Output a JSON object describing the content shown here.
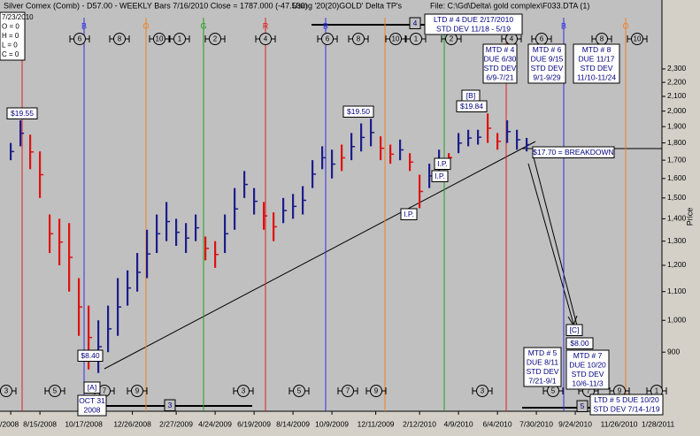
{
  "chart_data": {
    "type": "range_bar",
    "title": "Silver Comex (Comb) - D57.00 - WEEKLY Bars  7/16/2010 Close = 1787.000 (-47.500)",
    "subtitle": "Using '20(20)GOLD' Delta TP's",
    "file": "File: C:\\Gd\\Delta\\ gold complex\\F033.DTA (1)",
    "y_label": "Price",
    "info": [
      "7/23/2010",
      "O = 0",
      "H = 0",
      "L = 0",
      "C = 0"
    ],
    "log_scale": true,
    "ylim": [
      740,
      2890
    ],
    "yticks": [
      900,
      {
        "value": 1000,
        "label": "1,000"
      },
      {
        "value": 1100,
        "label": "1,100"
      },
      {
        "value": 1200,
        "label": "1,200"
      },
      {
        "value": 1300,
        "label": "1,300"
      },
      {
        "value": 1400,
        "label": "1,400"
      },
      {
        "value": 1500,
        "label": "1,500"
      },
      {
        "value": 1600,
        "label": "1,600"
      },
      {
        "value": 1700,
        "label": "1,700"
      },
      {
        "value": 1800,
        "label": "1,800"
      },
      {
        "value": 1900,
        "label": "1,900"
      },
      {
        "value": 2000,
        "label": "2,000"
      },
      {
        "value": 2100,
        "label": "2,100"
      },
      {
        "value": 2200,
        "label": "2,200"
      },
      {
        "value": 2300,
        "label": "2,300"
      }
    ],
    "xlim": [
      -2.2,
      133.8
    ],
    "xticks": [
      {
        "value": 0,
        "label": "/2008"
      },
      {
        "value": 6,
        "label": "8/15/2008"
      },
      {
        "value": 15,
        "label": "10/17/2008"
      },
      {
        "value": 25,
        "label": "12/26/2008"
      },
      {
        "value": 34,
        "label": "2/27/2009"
      },
      {
        "value": 42,
        "label": "4/24/2009"
      },
      {
        "value": 50,
        "label": "6/19/2009"
      },
      {
        "value": 58,
        "label": "8/14/2009"
      },
      {
        "value": 66,
        "label": "10/9/2009"
      },
      {
        "value": 75,
        "label": "12/11/2009"
      },
      {
        "value": 84,
        "label": "2/12/2010"
      },
      {
        "value": 92,
        "label": "4/9/2010"
      },
      {
        "value": 100,
        "label": "6/4/2010"
      },
      {
        "value": 108,
        "label": "7/30/2010"
      },
      {
        "value": 116,
        "label": "9/24/2010"
      },
      {
        "value": 125,
        "label": "11/26/2010"
      },
      {
        "value": 133,
        "label": "1/28/2011"
      }
    ],
    "x": [
      0,
      2,
      4,
      6,
      8,
      10,
      12,
      14,
      16,
      18,
      20,
      22,
      24,
      26,
      28,
      30,
      32,
      34,
      36,
      38,
      40,
      42,
      44,
      46,
      48,
      50,
      52,
      54,
      56,
      58,
      60,
      62,
      64,
      66,
      68,
      70,
      72,
      74,
      76,
      78,
      80,
      82,
      84,
      86,
      88,
      90,
      92,
      94,
      96,
      98,
      100,
      102,
      104,
      106
    ],
    "low": [
      1700,
      1780,
      1650,
      1500,
      1250,
      1200,
      1100,
      950,
      850,
      840,
      900,
      950,
      1050,
      1100,
      1150,
      1250,
      1300,
      1280,
      1250,
      1300,
      1220,
      1190,
      1250,
      1350,
      1500,
      1420,
      1350,
      1300,
      1380,
      1400,
      1420,
      1550,
      1650,
      1600,
      1640,
      1700,
      1750,
      1780,
      1700,
      1680,
      1700,
      1640,
      1450,
      1550,
      1640,
      1690,
      1740,
      1780,
      1790,
      1800,
      1760,
      1800,
      1760,
      1750
    ],
    "high": [
      1800,
      1940,
      1850,
      1750,
      1420,
      1400,
      1380,
      1150,
      1050,
      1000,
      1050,
      1150,
      1180,
      1250,
      1350,
      1420,
      1480,
      1400,
      1380,
      1420,
      1320,
      1300,
      1420,
      1550,
      1640,
      1550,
      1480,
      1430,
      1500,
      1520,
      1560,
      1700,
      1780,
      1760,
      1790,
      1860,
      1920,
      1950,
      1840,
      1790,
      1820,
      1740,
      1620,
      1680,
      1760,
      1740,
      1860,
      1880,
      1880,
      1984,
      1860,
      1940,
      1880,
      1830
    ],
    "colors": [
      "#1c1c8c",
      "#1c1c8c",
      "#e01010",
      "#e01010",
      "#e01010",
      "#e01010",
      "#e01010",
      "#e01010",
      "#e01010",
      "#1c1c8c",
      "#1c1c8c",
      "#1c1c8c",
      "#1c1c8c",
      "#1c1c8c",
      "#1c1c8c",
      "#1c1c8c",
      "#1c1c8c",
      "#1c1c8c",
      "#1c1c8c",
      "#1c1c8c",
      "#e01010",
      "#e01010",
      "#1c1c8c",
      "#1c1c8c",
      "#1c1c8c",
      "#1c1c8c",
      "#e01010",
      "#e01010",
      "#1c1c8c",
      "#1c1c8c",
      "#1c1c8c",
      "#1c1c8c",
      "#1c1c8c",
      "#1c1c8c",
      "#e01010",
      "#1c1c8c",
      "#1c1c8c",
      "#1c1c8c",
      "#e01010",
      "#e01010",
      "#1c1c8c",
      "#e01010",
      "#e01010",
      "#1c1c8c",
      "#1c1c8c",
      "#e01010",
      "#1c1c8c",
      "#1c1c8c",
      "#1c1c8c",
      "#e01010",
      "#e01010",
      "#1c1c8c",
      "#1c1c8c",
      "#1c1c8c"
    ],
    "cycle_lines": [
      {
        "color": "#e02020"
      },
      {
        "label": "B",
        "color": "#3030e0"
      },
      {
        "label": "O",
        "color": "#f08020"
      },
      {
        "label": "G",
        "color": "#20a020"
      },
      {
        "label": "R",
        "color": "#e02020"
      },
      {
        "label": "B",
        "color": "#3030e0"
      },
      {
        "color": "#f08020"
      },
      {
        "color": "#20a020"
      },
      {
        "color": "#e02020"
      },
      {
        "label": "B",
        "color": "#3030e0"
      },
      {
        "label": "O",
        "color": "#f08020"
      }
    ],
    "top_cycles": [
      "6",
      "8",
      "10",
      "1",
      "2",
      "4",
      "6",
      "8",
      "10",
      "1",
      "2",
      "4",
      "6",
      "8",
      "10"
    ],
    "bottom_cycles": [
      "3",
      "5",
      "7",
      "9",
      "3",
      "5",
      "7",
      "9",
      "3",
      "5",
      "7",
      "9",
      "1"
    ],
    "boxes": [
      [
        "$19.55"
      ],
      [
        "$8.40"
      ],
      [
        "[A]"
      ],
      [
        "OCT 31",
        "2008"
      ],
      [
        "$19.50"
      ],
      [
        "[B]"
      ],
      [
        "$19.84"
      ],
      [
        "I.P."
      ],
      [
        "I.P."
      ],
      [
        "I.P."
      ],
      [
        "$17.70 = BREAKDOWN"
      ],
      [
        "[C]"
      ],
      [
        "$8.00"
      ],
      [
        "LTD # 4 DUE 2/17/2010",
        "STD DEV 11/18 - 5/19"
      ],
      [
        "MTD # 4",
        "DUE 6/30",
        "STD DEV",
        "6/9-7/21"
      ],
      [
        "MTD # 6",
        "DUE 9/15",
        "STD DEV",
        "9/1-9/29"
      ],
      [
        "MTD # 8",
        "DUE 11/17",
        "STD DEV",
        "11/10-11/24"
      ],
      [
        "MTD #  5",
        "DUE 8/11",
        "STD DEV",
        "7/21-9/1"
      ],
      [
        "MTD # 7",
        "DUE 10/20",
        "STD DEV",
        "10/6-11/3"
      ],
      [
        "LTD # 5 DUE 10/20",
        "STD DEV  7/14-1/19"
      ],
      [
        "4"
      ],
      [
        "3"
      ],
      [
        "5"
      ]
    ]
  }
}
